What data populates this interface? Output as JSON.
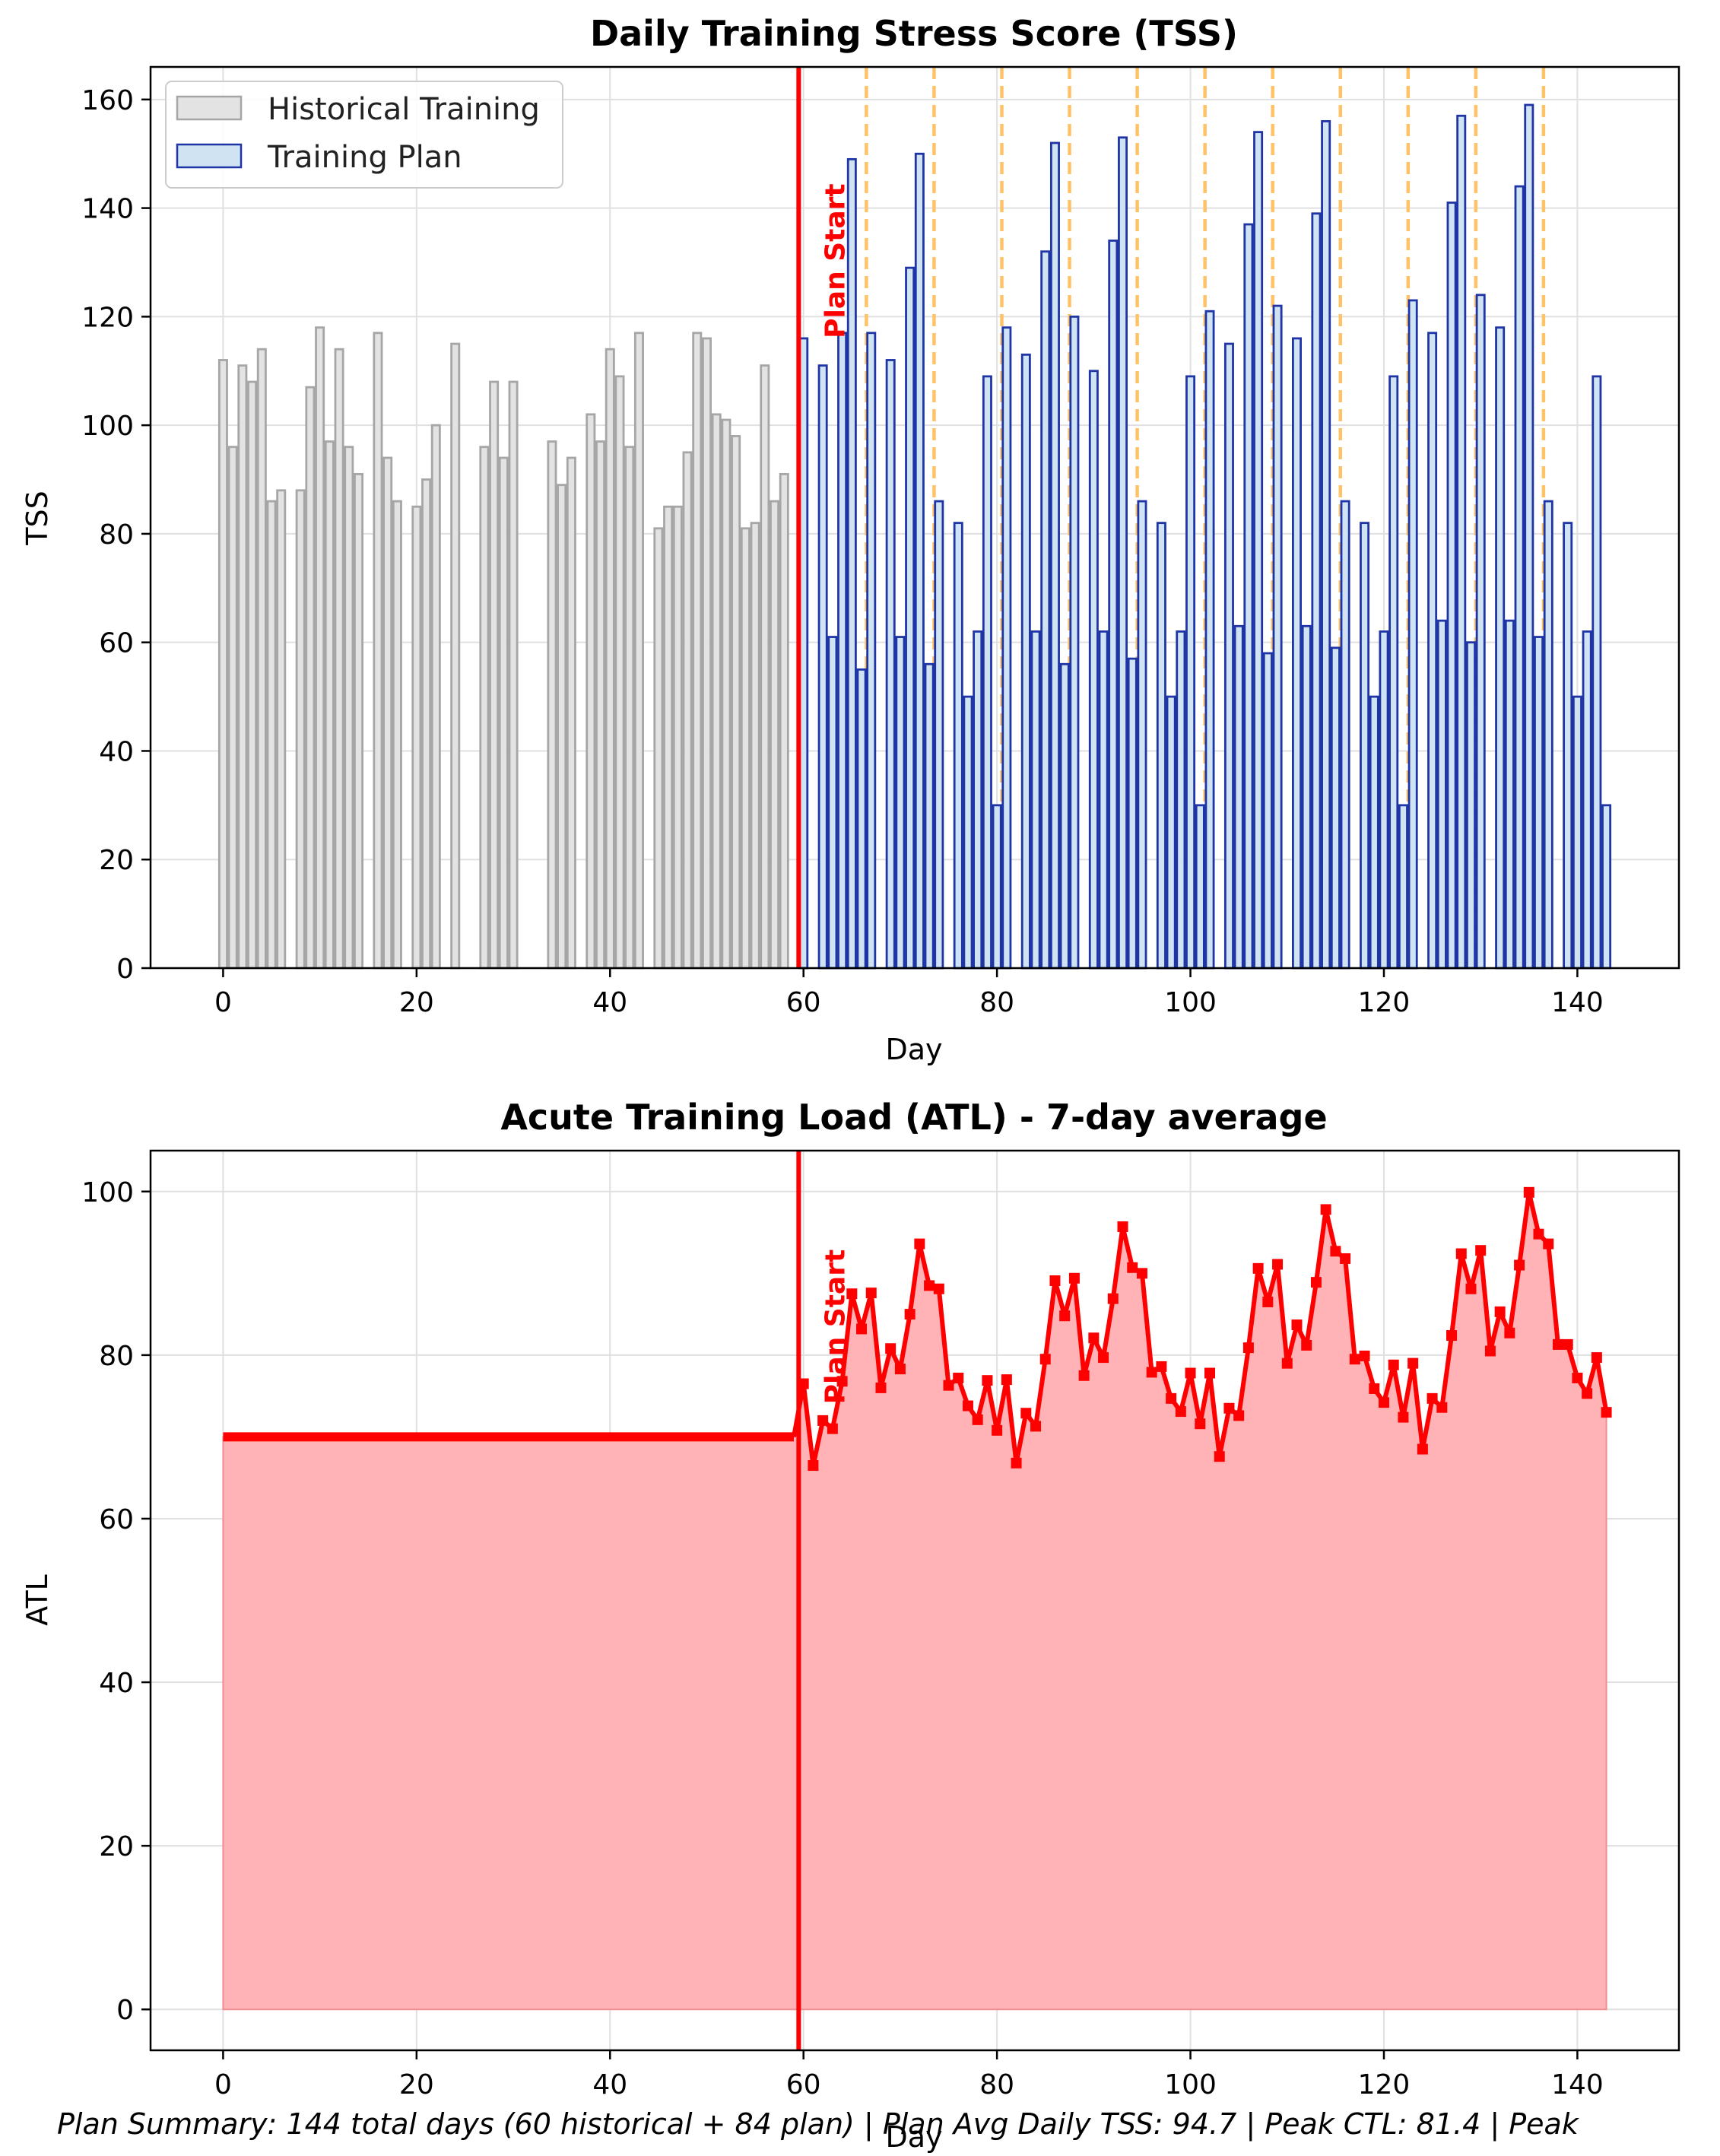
{
  "footer_text": "Plan Summary: 144 total days (60 historical + 84 plan) | Plan Avg Daily TSS: 94.7 | Peak CTL: 81.4 | Peak",
  "colors": {
    "historical_fill": "#e3e3e3",
    "historical_edge": "#a6a6a6",
    "plan_fill": "#cfe3f3",
    "plan_edge": "#1f35a5",
    "plan_start": "#ff0000",
    "phase_line": "#ffc266",
    "atl_line": "#ff0000",
    "atl_fill": "#ffb3b6",
    "grid": "#e0e0e0"
  },
  "chart_data": [
    {
      "type": "bar",
      "title": "Daily Training Stress Score (TSS)",
      "xlabel": "Day",
      "ylabel": "TSS",
      "xlim": [
        -7.5,
        150.5
      ],
      "ylim": [
        0,
        166
      ],
      "xticks": [
        0,
        20,
        40,
        60,
        80,
        100,
        120,
        140
      ],
      "yticks": [
        0,
        20,
        40,
        60,
        80,
        100,
        120,
        140,
        160
      ],
      "grid": true,
      "legend_position": "top-left",
      "annotation": "Plan Start",
      "plan_start_day": 59.5,
      "phase_lines": [
        66.5,
        73.5,
        80.5,
        87.5,
        94.5,
        101.5,
        108.5,
        115.5,
        122.5,
        129.5,
        136.5
      ],
      "series": [
        {
          "name": "Historical Training",
          "x_start": 0,
          "values": [
            112,
            96,
            111,
            108,
            114,
            86,
            88,
            0,
            88,
            107,
            118,
            97,
            114,
            96,
            91,
            0,
            117,
            94,
            86,
            0,
            85,
            90,
            100,
            0,
            115,
            0,
            0,
            96,
            108,
            94,
            108,
            0,
            0,
            0,
            97,
            89,
            94,
            0,
            102,
            97,
            114,
            109,
            96,
            117,
            0,
            81,
            85,
            85,
            95,
            117,
            116,
            102,
            101,
            98,
            81,
            82,
            111,
            86,
            91,
            0
          ]
        },
        {
          "name": "Training Plan",
          "x_start": 60,
          "values": [
            116,
            0,
            111,
            61,
            117,
            149,
            55,
            117,
            0,
            112,
            61,
            129,
            150,
            56,
            86,
            0,
            82,
            50,
            62,
            109,
            30,
            118,
            0,
            113,
            62,
            132,
            152,
            56,
            120,
            0,
            110,
            62,
            134,
            153,
            57,
            86,
            0,
            82,
            50,
            62,
            109,
            30,
            121,
            0,
            115,
            63,
            137,
            154,
            58,
            122,
            0,
            116,
            63,
            139,
            156,
            59,
            86,
            0,
            82,
            50,
            62,
            109,
            30,
            123,
            0,
            117,
            64,
            141,
            157,
            60,
            124,
            0,
            118,
            64,
            144,
            159,
            61,
            86,
            0,
            82,
            50,
            62,
            109,
            30
          ]
        }
      ]
    },
    {
      "type": "area",
      "title": "Acute Training Load (ATL) - 7-day average",
      "xlabel": "Day",
      "ylabel": "ATL",
      "xlim": [
        -7.5,
        150.5
      ],
      "ylim": [
        -5,
        105
      ],
      "xticks": [
        0,
        20,
        40,
        60,
        80,
        100,
        120,
        140
      ],
      "yticks": [
        0,
        20,
        40,
        60,
        80,
        100
      ],
      "grid": true,
      "annotation": "Plan Start",
      "plan_start_day": 59.5,
      "series": [
        {
          "name": "ATL",
          "x_start": 0,
          "values": [
            70,
            70,
            70,
            70,
            70,
            70,
            70,
            70,
            70,
            70,
            70,
            70,
            70,
            70,
            70,
            70,
            70,
            70,
            70,
            70,
            70,
            70,
            70,
            70,
            70,
            70,
            70,
            70,
            70,
            70,
            70,
            70,
            70,
            70,
            70,
            70,
            70,
            70,
            70,
            70,
            70,
            70,
            70,
            70,
            70,
            70,
            70,
            70,
            70,
            70,
            70,
            70,
            70,
            70,
            70,
            70,
            70,
            70,
            70,
            70,
            76.5,
            66.5,
            72,
            71,
            76.8,
            87.5,
            83.2,
            87.6,
            76,
            80.8,
            78.3,
            85,
            93.6,
            88.5,
            88.1,
            76.3,
            77.2,
            73.8,
            72.1,
            76.9,
            70.8,
            77,
            66.8,
            72.9,
            71.3,
            79.5,
            89.1,
            84.8,
            89.4,
            77.5,
            82.1,
            79.7,
            86.9,
            95.7,
            90.7,
            90,
            77.9,
            78.6,
            74.7,
            73.1,
            77.8,
            71.6,
            77.8,
            67.6,
            73.5,
            72.6,
            80.9,
            90.6,
            86.5,
            91.1,
            79,
            83.7,
            81.2,
            88.9,
            97.8,
            92.7,
            91.8,
            79.5,
            79.9,
            75.9,
            74.2,
            78.8,
            72.4,
            79,
            68.5,
            74.7,
            73.6,
            82.4,
            92.4,
            88.1,
            92.8,
            80.5,
            85.3,
            82.7,
            91,
            99.9,
            94.8,
            93.6,
            81.3,
            81.3,
            77.2,
            75.3,
            79.7,
            73
          ]
        }
      ]
    }
  ]
}
